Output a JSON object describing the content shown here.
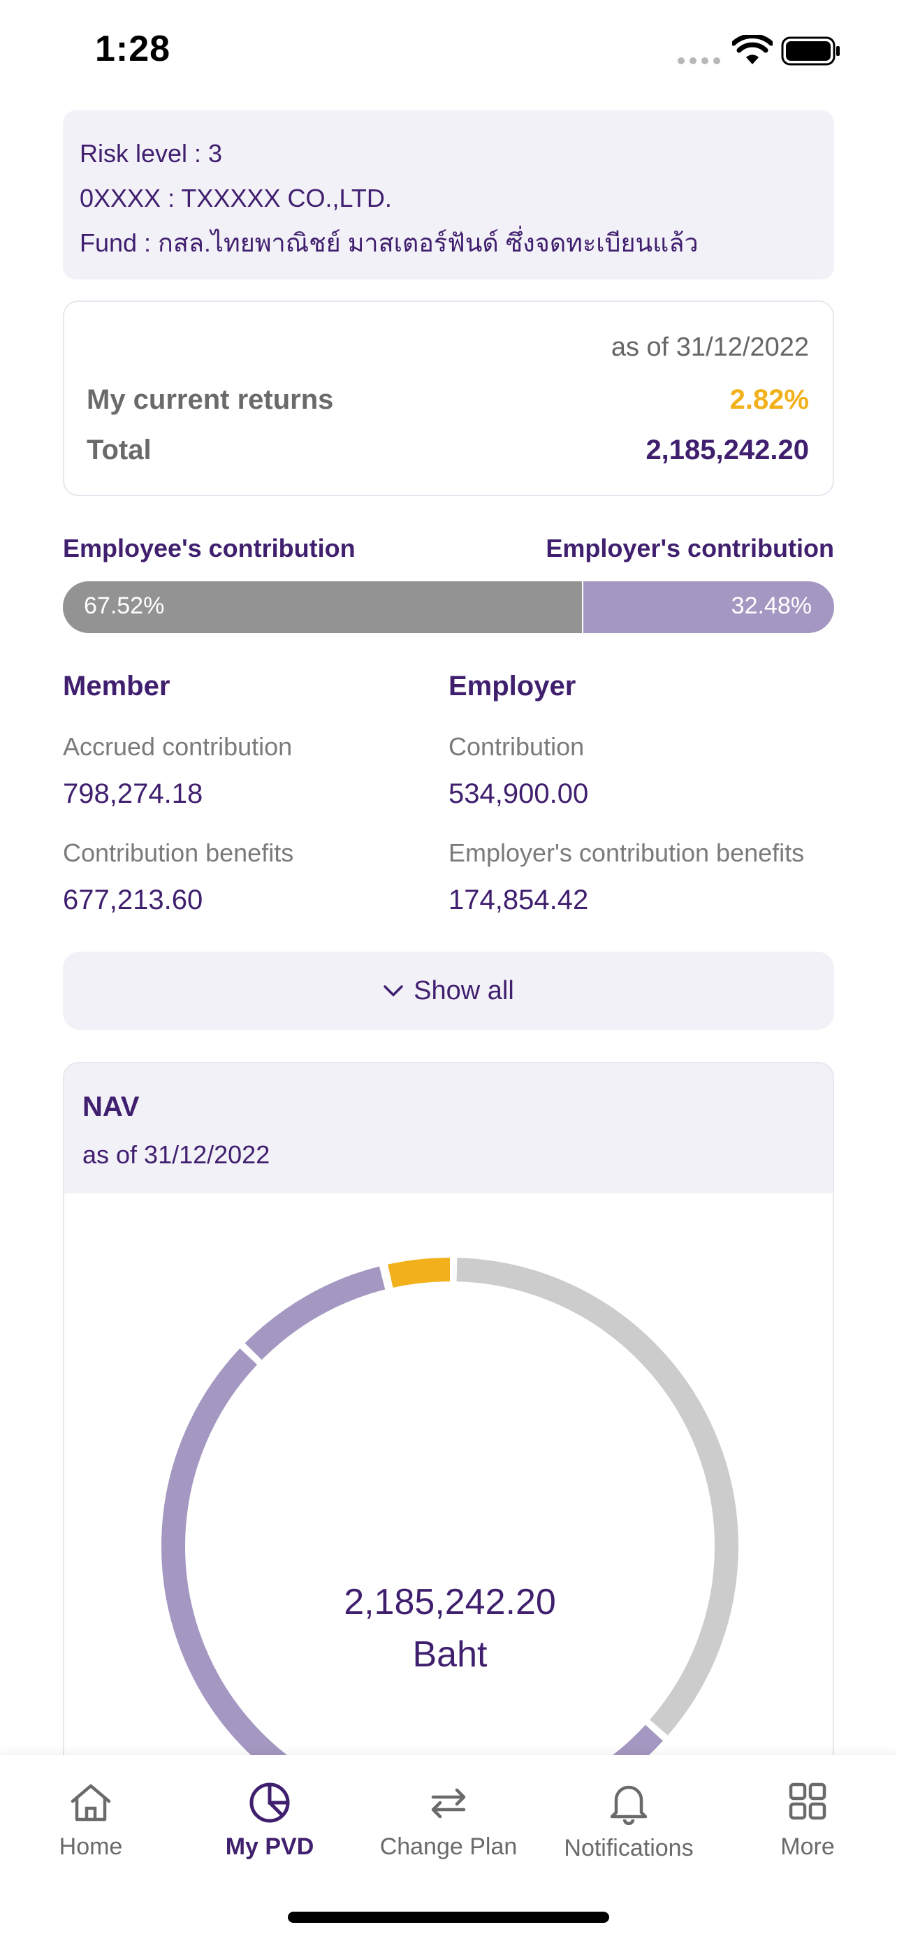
{
  "status_bar": {
    "time": "1:28"
  },
  "info": {
    "risk_level": "Risk level :  3",
    "company": "0XXXX :  TXXXXX CO.,LTD.",
    "fund": "Fund : กสล.ไทยพาณิชย์ มาสเตอร์ฟันด์ ซึ่งจดทะเบียนแล้ว"
  },
  "returns": {
    "as_of": "as of 31/12/2022",
    "current_returns_label": "My current returns",
    "current_returns_value": "2.82%",
    "total_label": "Total",
    "total_value": "2,185,242.20"
  },
  "contribution_split": {
    "employee_label": "Employee's contribution",
    "employer_label": "Employer's contribution",
    "employee_percent_text": "67.52%",
    "employer_percent_text": "32.48%",
    "employee_fraction": 0.6752
  },
  "member": {
    "title": "Member",
    "accrued_label": "Accrued contribution",
    "accrued_value": "798,274.18",
    "benefits_label": "Contribution benefits",
    "benefits_value": "677,213.60"
  },
  "employer": {
    "title": "Employer",
    "contribution_label": "Contribution",
    "contribution_value": "534,900.00",
    "benefits_label": "Employer's contribution benefits",
    "benefits_value": "174,854.42"
  },
  "show_all": {
    "label": "Show all"
  },
  "nav": {
    "title": "NAV",
    "as_of": "as of 31/12/2022",
    "total_value": "2,185,242.20",
    "unit": "Baht"
  },
  "tabs": [
    {
      "label": "Home",
      "icon": "home-icon"
    },
    {
      "label": "My PVD",
      "icon": "pie-chart-icon"
    },
    {
      "label": "Change Plan",
      "icon": "swap-arrows-icon"
    },
    {
      "label": "Notifications",
      "icon": "bell-icon"
    },
    {
      "label": "More",
      "icon": "grid-icon"
    }
  ],
  "colors": {
    "primary_purple": "#3f1f6e",
    "employee_gray": "#939393",
    "employer_purple": "#a497c1",
    "accent_yellow": "#f2b11b",
    "donut_gray": "#cccccc"
  }
}
